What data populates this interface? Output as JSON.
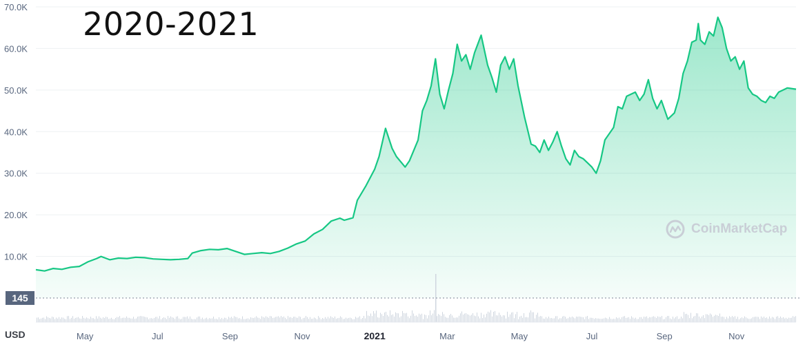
{
  "overlay_title": "2020-2021",
  "watermark": {
    "brand": "CoinMarketCap",
    "logo_icon": "coinmarketcap-logo"
  },
  "currency_label": "USD",
  "current_marker": "145",
  "colors": {
    "line": "#16c784",
    "area_top": "#16c784",
    "grid": "#eef0f3",
    "axis_text": "#58667e",
    "volume": "#cfd6df",
    "marker_bg": "#58667e"
  },
  "chart_data": {
    "type": "area",
    "title": "",
    "xlabel": "",
    "ylabel": "",
    "y_ticks": [
      "10.0K",
      "20.0K",
      "30.0K",
      "40.0K",
      "50.0K",
      "60.0K",
      "70.0K"
    ],
    "ylim": [
      0,
      70000
    ],
    "x_tick_labels": [
      {
        "label": "May",
        "month": 2020.333
      },
      {
        "label": "Jul",
        "month": 2020.5
      },
      {
        "label": "Sep",
        "month": 2020.667
      },
      {
        "label": "Nov",
        "month": 2020.833
      },
      {
        "label": "2021",
        "month": 2021.0,
        "bold": true
      },
      {
        "label": "Mar",
        "month": 2021.167
      },
      {
        "label": "May",
        "month": 2021.333
      },
      {
        "label": "Jul",
        "month": 2021.5
      },
      {
        "label": "Sep",
        "month": 2021.667
      },
      {
        "label": "Nov",
        "month": 2021.833
      }
    ],
    "xlim": [
      2020.22,
      2021.97
    ],
    "grid": true,
    "series": [
      {
        "name": "",
        "points": [
          [
            2020.22,
            6800
          ],
          [
            2020.24,
            6500
          ],
          [
            2020.26,
            7100
          ],
          [
            2020.28,
            6900
          ],
          [
            2020.3,
            7400
          ],
          [
            2020.32,
            7600
          ],
          [
            2020.34,
            8700
          ],
          [
            2020.36,
            9500
          ],
          [
            2020.37,
            10000
          ],
          [
            2020.39,
            9200
          ],
          [
            2020.41,
            9600
          ],
          [
            2020.43,
            9500
          ],
          [
            2020.45,
            9800
          ],
          [
            2020.47,
            9700
          ],
          [
            2020.49,
            9400
          ],
          [
            2020.51,
            9300
          ],
          [
            2020.53,
            9200
          ],
          [
            2020.55,
            9300
          ],
          [
            2020.57,
            9500
          ],
          [
            2020.58,
            10800
          ],
          [
            2020.6,
            11400
          ],
          [
            2020.62,
            11700
          ],
          [
            2020.64,
            11600
          ],
          [
            2020.66,
            11900
          ],
          [
            2020.68,
            11200
          ],
          [
            2020.7,
            10500
          ],
          [
            2020.72,
            10700
          ],
          [
            2020.74,
            10900
          ],
          [
            2020.76,
            10700
          ],
          [
            2020.78,
            11200
          ],
          [
            2020.8,
            12000
          ],
          [
            2020.82,
            13000
          ],
          [
            2020.84,
            13700
          ],
          [
            2020.86,
            15400
          ],
          [
            2020.88,
            16500
          ],
          [
            2020.9,
            18500
          ],
          [
            2020.92,
            19200
          ],
          [
            2020.93,
            18700
          ],
          [
            2020.95,
            19300
          ],
          [
            2020.96,
            23500
          ],
          [
            2020.98,
            27000
          ],
          [
            2021.0,
            31000
          ],
          [
            2021.01,
            34000
          ],
          [
            2021.025,
            40800
          ],
          [
            2021.04,
            36000
          ],
          [
            2021.05,
            34000
          ],
          [
            2021.07,
            31500
          ],
          [
            2021.08,
            33000
          ],
          [
            2021.1,
            38000
          ],
          [
            2021.11,
            45000
          ],
          [
            2021.12,
            47500
          ],
          [
            2021.13,
            51000
          ],
          [
            2021.14,
            57500
          ],
          [
            2021.15,
            49000
          ],
          [
            2021.16,
            45500
          ],
          [
            2021.17,
            50000
          ],
          [
            2021.18,
            54000
          ],
          [
            2021.19,
            61000
          ],
          [
            2021.2,
            57000
          ],
          [
            2021.21,
            58500
          ],
          [
            2021.22,
            55000
          ],
          [
            2021.23,
            59000
          ],
          [
            2021.245,
            63200
          ],
          [
            2021.26,
            56000
          ],
          [
            2021.27,
            53000
          ],
          [
            2021.28,
            49500
          ],
          [
            2021.29,
            56000
          ],
          [
            2021.3,
            58000
          ],
          [
            2021.31,
            55000
          ],
          [
            2021.32,
            57500
          ],
          [
            2021.33,
            51000
          ],
          [
            2021.345,
            43500
          ],
          [
            2021.36,
            37000
          ],
          [
            2021.37,
            36500
          ],
          [
            2021.38,
            35000
          ],
          [
            2021.39,
            38000
          ],
          [
            2021.4,
            35500
          ],
          [
            2021.41,
            37500
          ],
          [
            2021.42,
            40000
          ],
          [
            2021.43,
            36500
          ],
          [
            2021.44,
            33500
          ],
          [
            2021.45,
            32000
          ],
          [
            2021.46,
            35500
          ],
          [
            2021.47,
            34000
          ],
          [
            2021.48,
            33500
          ],
          [
            2021.49,
            32500
          ],
          [
            2021.5,
            31500
          ],
          [
            2021.51,
            30000
          ],
          [
            2021.52,
            33000
          ],
          [
            2021.53,
            38000
          ],
          [
            2021.55,
            41000
          ],
          [
            2021.56,
            46000
          ],
          [
            2021.57,
            45500
          ],
          [
            2021.58,
            48500
          ],
          [
            2021.6,
            49500
          ],
          [
            2021.61,
            47500
          ],
          [
            2021.62,
            49000
          ],
          [
            2021.63,
            52500
          ],
          [
            2021.64,
            48000
          ],
          [
            2021.65,
            45500
          ],
          [
            2021.66,
            47500
          ],
          [
            2021.675,
            43000
          ],
          [
            2021.69,
            44500
          ],
          [
            2021.7,
            48000
          ],
          [
            2021.71,
            54000
          ],
          [
            2021.72,
            57000
          ],
          [
            2021.73,
            61500
          ],
          [
            2021.74,
            62000
          ],
          [
            2021.745,
            66000
          ],
          [
            2021.75,
            62000
          ],
          [
            2021.76,
            61000
          ],
          [
            2021.77,
            64000
          ],
          [
            2021.78,
            63000
          ],
          [
            2021.79,
            67500
          ],
          [
            2021.8,
            65000
          ],
          [
            2021.81,
            60000
          ],
          [
            2021.82,
            57000
          ],
          [
            2021.83,
            58000
          ],
          [
            2021.84,
            55000
          ],
          [
            2021.85,
            57000
          ],
          [
            2021.86,
            50500
          ],
          [
            2021.87,
            49000
          ],
          [
            2021.88,
            48500
          ],
          [
            2021.89,
            47500
          ],
          [
            2021.9,
            47000
          ],
          [
            2021.91,
            48500
          ],
          [
            2021.92,
            48000
          ],
          [
            2021.93,
            49500
          ],
          [
            2021.95,
            50500
          ],
          [
            2021.97,
            50200
          ]
        ]
      }
    ],
    "volume_marker_value": "145"
  }
}
